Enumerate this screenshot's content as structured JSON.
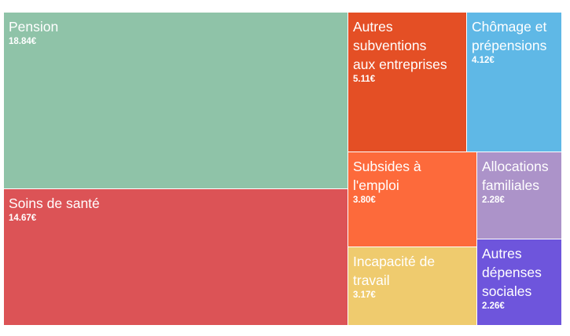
{
  "chart_data": {
    "type": "treemap",
    "unit": "€",
    "items": [
      {
        "name": "Pension",
        "label_lines": "Pension",
        "value": 18.84,
        "value_label": "18.84€",
        "color": "#8fc3a8"
      },
      {
        "name": "Soins de santé",
        "label_lines": "Soins de santé",
        "value": 14.67,
        "value_label": "14.67€",
        "color": "#dc5356"
      },
      {
        "name": "Autres subventions aux entreprises",
        "label_lines": "Autres\nsubventions\naux entreprises",
        "value": 5.11,
        "value_label": "5.11€",
        "color": "#e44f25"
      },
      {
        "name": "Chômage et prépensions",
        "label_lines": "Chômage et\nprépensions",
        "value": 4.12,
        "value_label": "4.12€",
        "color": "#5fb8e6"
      },
      {
        "name": "Subsides à l'emploi",
        "label_lines": "Subsides à\nl'emploi",
        "value": 3.8,
        "value_label": "3.80€",
        "color": "#fd6a3b"
      },
      {
        "name": "Incapacité de travail",
        "label_lines": "Incapacité de\ntravail",
        "value": 3.17,
        "value_label": "3.17€",
        "color": "#efcb6e"
      },
      {
        "name": "Allocations familiales",
        "label_lines": "Allocations\nfamiliales",
        "value": 2.28,
        "value_label": "2.28€",
        "color": "#ac93c9"
      },
      {
        "name": "Autres dépenses sociales",
        "label_lines": "Autres\ndépenses\nsociales",
        "value": 2.26,
        "value_label": "2.26€",
        "color": "#6e55dc"
      }
    ]
  }
}
